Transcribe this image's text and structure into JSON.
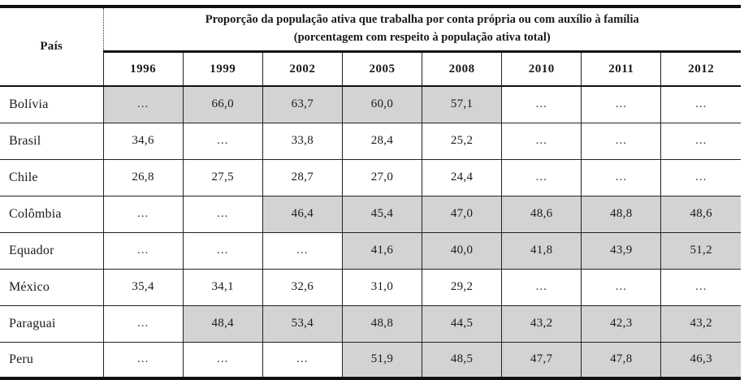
{
  "table": {
    "country_header": "País",
    "title_line1": "Proporção da população ativa que trabalha por conta própria ou com auxílio à família",
    "title_line2": "(porcentagem com respeito à população ativa total)",
    "years": [
      "1996",
      "1999",
      "2002",
      "2005",
      "2008",
      "2010",
      "2011",
      "2012"
    ],
    "missing_marker": "...",
    "colors": {
      "cell_shade": "#d3d3d3",
      "border": "#111111",
      "text": "#1a1a1a"
    },
    "rows": [
      {
        "country": "Bolívia",
        "values": [
          "...",
          "66,0",
          "63,7",
          "60,0",
          "57,1",
          "...",
          "...",
          "..."
        ],
        "shaded": [
          true,
          true,
          true,
          true,
          true,
          false,
          false,
          false
        ]
      },
      {
        "country": "Brasil",
        "values": [
          "34,6",
          "...",
          "33,8",
          "28,4",
          "25,2",
          "...",
          "...",
          "..."
        ],
        "shaded": [
          false,
          false,
          false,
          false,
          false,
          false,
          false,
          false
        ]
      },
      {
        "country": "Chile",
        "values": [
          "26,8",
          "27,5",
          "28,7",
          "27,0",
          "24,4",
          "...",
          "...",
          "..."
        ],
        "shaded": [
          false,
          false,
          false,
          false,
          false,
          false,
          false,
          false
        ]
      },
      {
        "country": "Colômbia",
        "values": [
          "...",
          "...",
          "46,4",
          "45,4",
          "47,0",
          "48,6",
          "48,8",
          "48,6"
        ],
        "shaded": [
          false,
          false,
          true,
          true,
          true,
          true,
          true,
          true
        ]
      },
      {
        "country": "Equador",
        "values": [
          "...",
          "...",
          "...",
          "41,6",
          "40,0",
          "41,8",
          "43,9",
          "51,2"
        ],
        "shaded": [
          false,
          false,
          false,
          true,
          true,
          true,
          true,
          true
        ]
      },
      {
        "country": "México",
        "values": [
          "35,4",
          "34,1",
          "32,6",
          "31,0",
          "29,2",
          "...",
          "...",
          "..."
        ],
        "shaded": [
          false,
          false,
          false,
          false,
          false,
          false,
          false,
          false
        ]
      },
      {
        "country": "Paraguai",
        "values": [
          "...",
          "48,4",
          "53,4",
          "48,8",
          "44,5",
          "43,2",
          "42,3",
          "43,2"
        ],
        "shaded": [
          false,
          true,
          true,
          true,
          true,
          true,
          true,
          true
        ]
      },
      {
        "country": "Peru",
        "values": [
          "...",
          "...",
          "...",
          "51,9",
          "48,5",
          "47,7",
          "47,8",
          "46,3"
        ],
        "shaded": [
          false,
          false,
          false,
          true,
          true,
          true,
          true,
          true
        ]
      }
    ]
  }
}
